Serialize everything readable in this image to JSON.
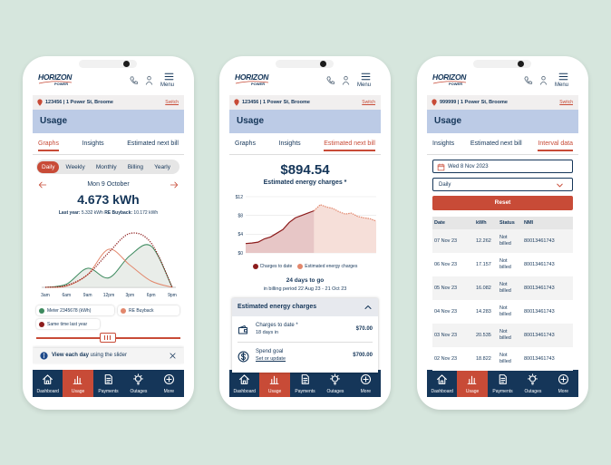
{
  "brand": "HORIZON",
  "brand_sub": "POWER",
  "menu": "Menu",
  "switch": "Switch",
  "page_title": "Usage",
  "nav": [
    "Dashboard",
    "Usage",
    "Payments",
    "Outages",
    "More"
  ],
  "phones": [
    {
      "account": "123456 | 1 Power St, Broome",
      "tabs": [
        "Graphs",
        "Insights",
        "Estimated next bill"
      ],
      "active_tab": 0,
      "active_nav": 1,
      "graphs": {
        "periods": [
          "Daily",
          "Weekly",
          "Monthly",
          "Billing",
          "Yearly"
        ],
        "active_period": 0,
        "date": "Mon 9 October",
        "total": "4.673 kWh",
        "last_year_label": "Last year:",
        "last_year": "5.332 kWh",
        "buyback_label": "RE Buyback:",
        "buyback": "10.172 kWh",
        "chart": {
          "type": "line",
          "categories": [
            "3am",
            "6am",
            "9am",
            "12pm",
            "3pm",
            "6pm",
            "9pm"
          ],
          "ylim": [
            0,
            10
          ],
          "series": [
            {
              "name": "Meter 2345678 (kWh)",
              "color": "#3d8a5e",
              "area": true,
              "values": [
                0,
                0.5,
                3,
                1.5,
                5,
                6.5,
                0
              ]
            },
            {
              "name": "RE Buyback",
              "color": "#e2876c",
              "values": [
                0,
                0.2,
                2,
                6,
                3.5,
                1,
                0
              ]
            },
            {
              "name": "Same time last year",
              "color": "#8c1c1c",
              "line_style": "dotted",
              "values": [
                0,
                0.3,
                2,
                5.5,
                8.5,
                7,
                0
              ]
            }
          ]
        },
        "hint_bold": "View each day",
        "hint": "using the slider"
      }
    },
    {
      "account": "123456 | 1 Power St, Broome",
      "tabs": [
        "Graphs",
        "Insights",
        "Estimated next bill"
      ],
      "active_tab": 2,
      "active_nav": 1,
      "bill": {
        "amount": "$894.54",
        "subtitle": "Estimated energy charges *",
        "chart": {
          "type": "area",
          "categories": [
            null,
            null,
            null,
            null,
            null,
            null,
            null,
            null,
            null,
            null,
            null,
            null,
            null,
            null,
            null,
            null,
            null,
            null,
            null,
            null,
            null,
            null
          ],
          "ylim": [
            0,
            12
          ],
          "yticks": [
            {
              "value": 12,
              "label": "$12"
            },
            {
              "value": 8,
              "label": "$8"
            },
            {
              "value": 4,
              "label": "$4"
            },
            {
              "value": 0,
              "label": "$0"
            }
          ],
          "grid": true,
          "series": [
            {
              "name": "Charges to date",
              "color": "#8c1c1c",
              "values": [
                2,
                2.1,
                2.3,
                3,
                3.4,
                4.2,
                5,
                6.5,
                7.5,
                8,
                8.5,
                9,
                null,
                null,
                null,
                null,
                null,
                null,
                null,
                null,
                null,
                null
              ]
            },
            {
              "name": "Estimated energy charges",
              "color": "#e2876c",
              "values": [
                null,
                null,
                null,
                null,
                null,
                null,
                null,
                null,
                null,
                null,
                null,
                9,
                10.3,
                9.8,
                9.5,
                8.8,
                8.3,
                8.5,
                7.8,
                7.5,
                7.3,
                6.8
              ]
            }
          ]
        },
        "days_to_go": "24 days to go",
        "billing_period": "in billing period 22 Aug 23 - 21 Oct 23",
        "accordion_title": "Estimated energy charges",
        "items": [
          {
            "title": "Charges to date *",
            "detail": "18 days in",
            "amount": "$70.00"
          },
          {
            "title": "Spend goal",
            "link": "Set or update",
            "amount": "$700.00"
          }
        ]
      }
    },
    {
      "account": "999999 | 1 Power St, Broome",
      "tabs": [
        "Insights",
        "Estimated next bill",
        "Interval data"
      ],
      "active_tab": 2,
      "active_nav": 1,
      "interval": {
        "date": "Wed 8 Nov 2023",
        "frequency": "Daily",
        "reset": "Reset",
        "table": {
          "columns": [
            "Date",
            "kWh",
            "Status",
            "NMI"
          ],
          "rows": [
            [
              "07 Nov 23",
              12.262,
              "Not billed",
              "80013461743"
            ],
            [
              "06 Nov 23",
              17.157,
              "Not billed",
              "80013461743"
            ],
            [
              "05 Nov 23",
              16.082,
              "Not billed",
              "80013461743"
            ],
            [
              "04 Nov 23",
              14.283,
              "Not billed",
              "80013461743"
            ],
            [
              "03 Nov 23",
              20.535,
              "Not billed",
              "80013461743"
            ],
            [
              "02 Nov 23",
              18.822,
              "Not billed",
              "80013461743"
            ]
          ]
        }
      }
    }
  ]
}
